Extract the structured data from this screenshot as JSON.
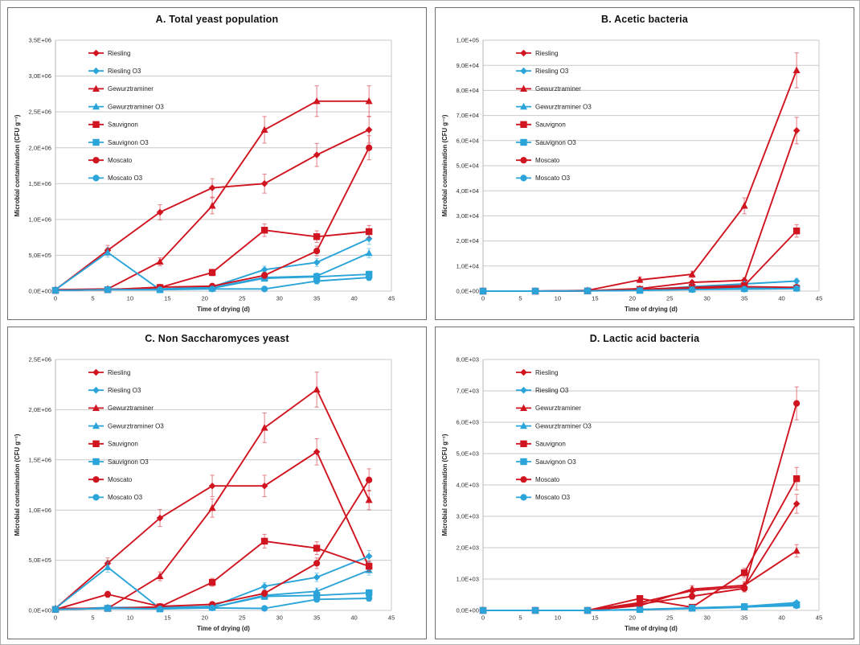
{
  "figure": {
    "xlabel": "Time of drying (d)",
    "ylabel": "Microbial contamination (CFU g⁻¹)",
    "x_points": [
      0,
      7,
      14,
      21,
      28,
      35,
      42
    ],
    "x_ticks": [
      0,
      5,
      10,
      15,
      20,
      25,
      30,
      35,
      40,
      45
    ],
    "x_max": 45,
    "colors": {
      "red": "#d01420",
      "blue": "#2ba4d9",
      "grid": "#c9c9c9",
      "axis": "#b5b5b5",
      "tick_text": "#333333",
      "title_text": "#111111"
    },
    "series_defs": [
      {
        "name": "Riesling",
        "marker": "diamond",
        "color": "red"
      },
      {
        "name": "Riesling O3",
        "marker": "diamond",
        "color": "blue"
      },
      {
        "name": "Gewurztraminer",
        "marker": "triangle",
        "color": "red"
      },
      {
        "name": "Gewurztraminer O3",
        "marker": "triangle",
        "color": "blue"
      },
      {
        "name": "Sauvignon",
        "marker": "square",
        "color": "red"
      },
      {
        "name": "Sauvignon O3",
        "marker": "square",
        "color": "blue"
      },
      {
        "name": "Moscato",
        "marker": "circle",
        "color": "red"
      },
      {
        "name": "Moscato O3",
        "marker": "circle",
        "color": "blue"
      }
    ]
  },
  "chart_data": [
    {
      "type": "line",
      "title": "A. Total yeast population",
      "xlabel": "Time of drying (d)",
      "ylabel": "Microbial contamination (CFU g⁻¹)",
      "x": [
        0,
        7,
        14,
        21,
        28,
        35,
        42
      ],
      "ylim": [
        0,
        3500000
      ],
      "ytick_labels": [
        "0,0E+00",
        "5,0E+05",
        "1,0E+06",
        "1,5E+06",
        "2,0E+06",
        "2,5E+06",
        "3,0E+06",
        "3,5E+06"
      ],
      "legend_position": "upper-left-inside",
      "grid": true,
      "series": {
        "Riesling": [
          20000,
          570000,
          1100000,
          1440000,
          1500000,
          1900000,
          2250000
        ],
        "Riesling O3": [
          10000,
          30000,
          30000,
          60000,
          300000,
          400000,
          730000
        ],
        "Gewurztraminer": [
          20000,
          30000,
          410000,
          1190000,
          2250000,
          2650000,
          2650000
        ],
        "Gewurztraminer O3": [
          20000,
          540000,
          20000,
          50000,
          190000,
          210000,
          530000
        ],
        "Sauvignon": [
          10000,
          20000,
          50000,
          260000,
          850000,
          760000,
          830000
        ],
        "Sauvignon O3": [
          10000,
          20000,
          20000,
          40000,
          180000,
          200000,
          235000
        ],
        "Moscato": [
          10000,
          20000,
          55000,
          70000,
          220000,
          560000,
          2000000
        ],
        "Moscato O3": [
          10000,
          20000,
          20000,
          30000,
          30000,
          140000,
          190000
        ]
      }
    },
    {
      "type": "line",
      "title": "B. Acetic bacteria",
      "xlabel": "Time of drying (d)",
      "ylabel": "Microbial contamination (CFU g⁻¹)",
      "x": [
        0,
        7,
        14,
        21,
        28,
        35,
        42
      ],
      "ylim": [
        0,
        100000
      ],
      "ytick_labels": [
        "0,0E+00",
        "1,0E+04",
        "2,0E+04",
        "3,0E+04",
        "4,0E+04",
        "5,0E+04",
        "6,0E+04",
        "7,0E+04",
        "8,0E+04",
        "9,0E+04",
        "1,0E+05"
      ],
      "legend_position": "upper-left-inside",
      "grid": true,
      "series": {
        "Riesling": [
          0,
          0,
          200,
          1000,
          3500,
          4300,
          64000
        ],
        "Riesling O3": [
          0,
          0,
          100,
          500,
          1800,
          2900,
          4000
        ],
        "Gewurztraminer": [
          0,
          0,
          300,
          4500,
          6700,
          34000,
          88000
        ],
        "Gewurztraminer O3": [
          0,
          0,
          100,
          400,
          1200,
          1500,
          1400
        ],
        "Sauvignon": [
          0,
          0,
          100,
          700,
          1500,
          2200,
          24000
        ],
        "Sauvignon O3": [
          0,
          0,
          100,
          300,
          800,
          1000,
          1200
        ],
        "Moscato": [
          0,
          0,
          100,
          500,
          1000,
          1800,
          1500
        ],
        "Moscato O3": [
          0,
          0,
          100,
          300,
          600,
          800,
          1000
        ]
      }
    },
    {
      "type": "line",
      "title": "C. Non Saccharomyces yeast",
      "xlabel": "Time of drying (d)",
      "ylabel": "Microbial contamination (CFU g⁻¹)",
      "x": [
        0,
        7,
        14,
        21,
        28,
        35,
        42
      ],
      "ylim": [
        0,
        2500000
      ],
      "ytick_labels": [
        "0,0E+00",
        "5,0E+05",
        "1,0E+06",
        "1,5E+06",
        "2,0E+06",
        "2,5E+06"
      ],
      "legend_position": "upper-left-inside",
      "grid": true,
      "series": {
        "Riesling": [
          20000,
          470000,
          920000,
          1240000,
          1240000,
          1580000,
          430000
        ],
        "Riesling O3": [
          10000,
          30000,
          30000,
          40000,
          240000,
          330000,
          540000
        ],
        "Gewurztraminer": [
          20000,
          20000,
          340000,
          1020000,
          1820000,
          2200000,
          1100000
        ],
        "Gewurztraminer O3": [
          20000,
          430000,
          20000,
          30000,
          150000,
          190000,
          400000
        ],
        "Sauvignon": [
          10000,
          20000,
          35000,
          280000,
          690000,
          620000,
          440000
        ],
        "Sauvignon O3": [
          10000,
          20000,
          15000,
          30000,
          140000,
          150000,
          175000
        ],
        "Moscato": [
          10000,
          160000,
          40000,
          60000,
          170000,
          470000,
          1300000
        ],
        "Moscato O3": [
          10000,
          20000,
          15000,
          25000,
          20000,
          110000,
          120000
        ]
      }
    },
    {
      "type": "line",
      "title": "D. Lactic acid bacteria",
      "xlabel": "Time of drying (d)",
      "ylabel": "Microbial contamination (CFU g⁻¹)",
      "x": [
        0,
        7,
        14,
        21,
        28,
        35,
        42
      ],
      "ylim": [
        0,
        8000
      ],
      "ytick_labels": [
        "0,0E+00",
        "1,0E+03",
        "2,0E+03",
        "3,0E+03",
        "4,0E+03",
        "5,0E+03",
        "6,0E+03",
        "7,0E+03",
        "8,0E+03"
      ],
      "legend_position": "upper-left-inside",
      "grid": true,
      "series": {
        "Riesling": [
          0,
          0,
          0,
          250,
          630,
          750,
          3400
        ],
        "Riesling O3": [
          0,
          0,
          0,
          30,
          80,
          130,
          250
        ],
        "Gewurztraminer": [
          0,
          0,
          0,
          150,
          680,
          800,
          1900
        ],
        "Gewurztraminer O3": [
          0,
          0,
          0,
          20,
          60,
          100,
          200
        ],
        "Sauvignon": [
          0,
          0,
          0,
          380,
          100,
          1200,
          4200
        ],
        "Sauvignon O3": [
          0,
          0,
          0,
          30,
          70,
          120,
          180
        ],
        "Moscato": [
          0,
          0,
          0,
          200,
          450,
          700,
          6600
        ],
        "Moscato O3": [
          0,
          0,
          0,
          20,
          80,
          110,
          150
        ]
      }
    }
  ]
}
